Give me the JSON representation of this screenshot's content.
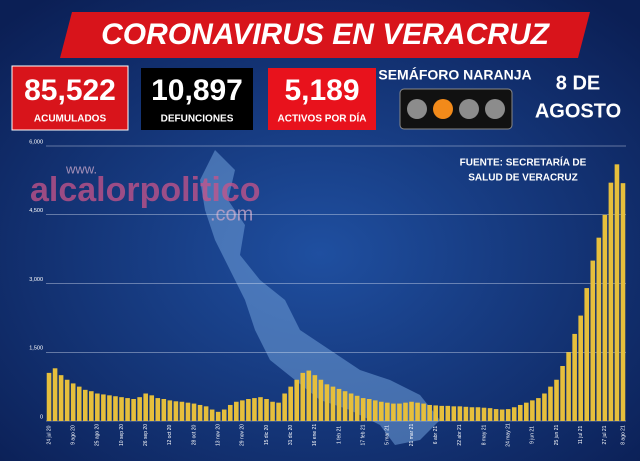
{
  "header": {
    "title": "CORONAVIRUS EN VERACRUZ"
  },
  "stats": [
    {
      "value": "85,522",
      "label": "ACUMULADOS"
    },
    {
      "value": "10,897",
      "label": "DEFUNCIONES"
    },
    {
      "value": "5,189",
      "label": "ACTIVOS POR DÍA"
    }
  ],
  "semaforo": "SEMÁFORO NARANJA",
  "date": [
    "8 DE",
    "AGOSTO"
  ],
  "watermark": {
    "prefix": "www.",
    "name": "alcalorpolitico",
    "suffix": ".com"
  },
  "source": [
    "FUENTE: SECRETARÍA DE",
    "SALUD DE VERACRUZ"
  ],
  "chart_data": {
    "type": "bar",
    "color": "#e6bf3c",
    "categories": [
      "24 jul 20",
      null,
      null,
      null,
      "9 ago 20",
      null,
      null,
      null,
      "25 ago 20",
      null,
      null,
      null,
      "10 sep 20",
      null,
      null,
      null,
      "26 sep 20",
      null,
      null,
      null,
      "12 oct 20",
      null,
      null,
      null,
      "28 oct 20",
      null,
      null,
      null,
      "13 nov 20",
      null,
      null,
      null,
      "29 nov 20",
      null,
      null,
      null,
      "15 dic 20",
      null,
      null,
      null,
      "31 dic 20",
      null,
      null,
      null,
      "16 ene 21",
      null,
      null,
      null,
      "1 feb 21",
      null,
      null,
      null,
      "17 feb 21",
      null,
      null,
      null,
      "5 mar 21",
      null,
      null,
      null,
      "21 mar 21",
      null,
      null,
      null,
      "6 abr 21",
      null,
      null,
      null,
      "22 abr 21",
      null,
      null,
      null,
      "8 may 21",
      null,
      null,
      null,
      "24 may 21",
      null,
      null,
      null,
      "9 jun 21",
      null,
      null,
      null,
      "25 jun 21",
      null,
      null,
      null,
      "11 jul 21",
      null,
      null,
      null,
      "27 jul 21",
      null,
      null,
      "8 ago 21"
    ],
    "values": [
      1050,
      1150,
      1000,
      900,
      820,
      750,
      680,
      650,
      600,
      580,
      560,
      540,
      520,
      500,
      480,
      520,
      600,
      560,
      500,
      480,
      450,
      430,
      420,
      400,
      380,
      350,
      320,
      250,
      200,
      250,
      350,
      420,
      450,
      480,
      500,
      520,
      480,
      420,
      400,
      600,
      750,
      900,
      1050,
      1100,
      1000,
      900,
      800,
      750,
      700,
      650,
      600,
      550,
      500,
      480,
      450,
      420,
      400,
      380,
      380,
      400,
      420,
      400,
      380,
      350,
      340,
      330,
      330,
      320,
      320,
      310,
      300,
      300,
      290,
      280,
      260,
      250,
      260,
      300,
      350,
      400,
      450,
      500,
      600,
      750,
      900,
      1200,
      1500,
      1900,
      2300,
      2900,
      3500,
      4000,
      4500,
      5200,
      5600,
      5189
    ],
    "ylim": [
      0,
      6000
    ],
    "yticks": [
      0,
      {
        "value": 1500,
        "label": "1,500"
      },
      {
        "value": 3000,
        "label": "3,000"
      },
      {
        "value": 4500,
        "label": "4,500"
      },
      {
        "value": 6000,
        "label": "6,000"
      }
    ],
    "grid": true
  }
}
